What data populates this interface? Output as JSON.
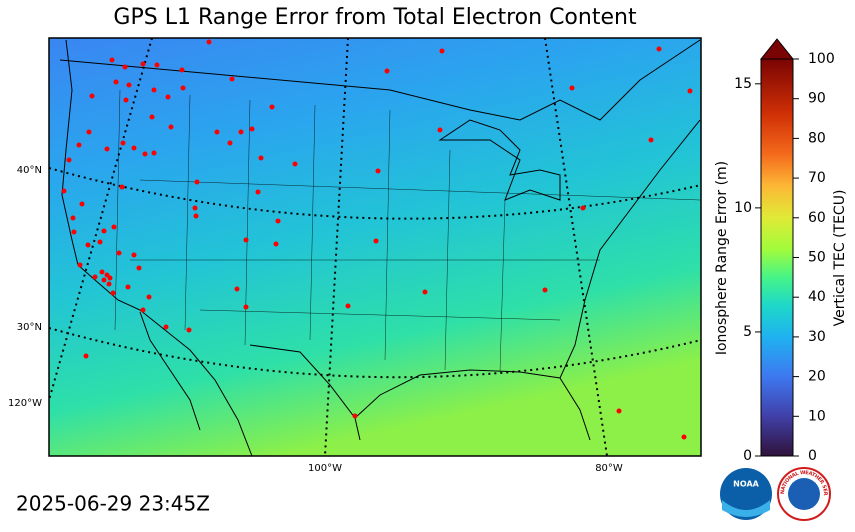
{
  "header": {
    "title": "GPS L1 Range Error from Total Electron Content",
    "timestamp": "2025-06-29 23:45Z"
  },
  "map": {
    "lat_labels": [
      "40°N",
      "30°N"
    ],
    "lon_labels": [
      "120°W",
      "100°W",
      "80°W"
    ]
  },
  "colorbar": {
    "range_error": {
      "label": "Ionosphere Range Error (m)",
      "lim": [
        0,
        16
      ],
      "ticks": [
        0,
        5,
        10,
        15
      ]
    },
    "tec": {
      "label": "Vertical TEC (TECU)",
      "lim": [
        0,
        100
      ],
      "ticks": [
        0,
        10,
        20,
        30,
        40,
        50,
        60,
        70,
        80,
        90,
        100
      ]
    }
  },
  "logos": {
    "noaa": "NOAA",
    "nws": "NATIONAL WEATHER SERVICE"
  }
}
